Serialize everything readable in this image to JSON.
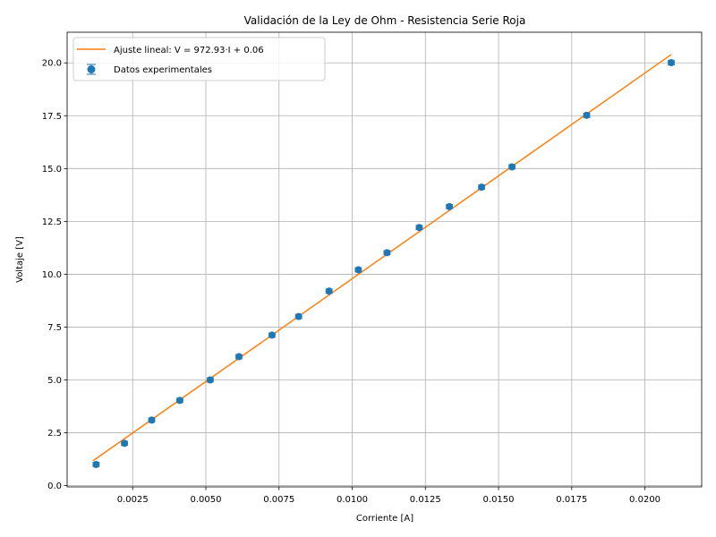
{
  "chart_data": {
    "type": "scatter",
    "title": "Validación de la Ley de Ohm - Resistencia Serie Roja",
    "xlabel": "Corriente [A]",
    "ylabel": "Voltaje [V]",
    "xlim": [
      0.00026,
      0.02194
    ],
    "ylim": [
      -0.06,
      21.45
    ],
    "xticks": [
      {
        "value": 0.0025,
        "label": "0.0025"
      },
      {
        "value": 0.005,
        "label": "0.0050"
      },
      {
        "value": 0.0075,
        "label": "0.0075"
      },
      {
        "value": 0.01,
        "label": "0.0100"
      },
      {
        "value": 0.0125,
        "label": "0.0125"
      },
      {
        "value": 0.015,
        "label": "0.0150"
      },
      {
        "value": 0.0175,
        "label": "0.0175"
      },
      {
        "value": 0.02,
        "label": "0.0200"
      }
    ],
    "yticks": [
      {
        "value": 0.0,
        "label": "0.0"
      },
      {
        "value": 2.5,
        "label": "2.5"
      },
      {
        "value": 5.0,
        "label": "5.0"
      },
      {
        "value": 7.5,
        "label": "7.5"
      },
      {
        "value": 10.0,
        "label": "10.0"
      },
      {
        "value": 12.5,
        "label": "12.5"
      },
      {
        "value": 15.0,
        "label": "15.0"
      },
      {
        "value": 17.5,
        "label": "17.5"
      },
      {
        "value": 20.0,
        "label": "20.0"
      }
    ],
    "grid": true,
    "legend_position": "top-left",
    "series": [
      {
        "name": "Datos experimentales",
        "kind": "errorbar",
        "color": "#1f77b4",
        "x": [
          0.00125,
          0.00222,
          0.00315,
          0.00411,
          0.00515,
          0.00613,
          0.00726,
          0.00817,
          0.00921,
          0.01021,
          0.01119,
          0.01229,
          0.01332,
          0.01442,
          0.01546,
          0.01801,
          0.0209
        ],
        "y": [
          1.0,
          2.0,
          3.1,
          4.03,
          5.0,
          6.1,
          7.12,
          8.0,
          9.2,
          10.21,
          11.02,
          12.21,
          13.2,
          14.12,
          15.08,
          17.52,
          20.01
        ],
        "yerr": [
          0.1,
          0.1,
          0.1,
          0.1,
          0.1,
          0.1,
          0.1,
          0.1,
          0.1,
          0.1,
          0.1,
          0.1,
          0.1,
          0.1,
          0.1,
          0.1,
          0.1
        ],
        "xerr": [
          0.0001,
          0.0001,
          0.0001,
          0.0001,
          0.0001,
          0.0001,
          0.0001,
          0.0001,
          0.0001,
          0.0001,
          0.0001,
          0.0001,
          0.0001,
          0.0001,
          0.0001,
          0.0001,
          0.0001
        ]
      },
      {
        "name": "Ajuste lineal: V = 972.93·I + 0.06",
        "kind": "line",
        "color": "#ff7f0e",
        "x": [
          0.00115,
          0.0209
        ],
        "y": [
          1.179,
          20.394
        ]
      }
    ]
  }
}
